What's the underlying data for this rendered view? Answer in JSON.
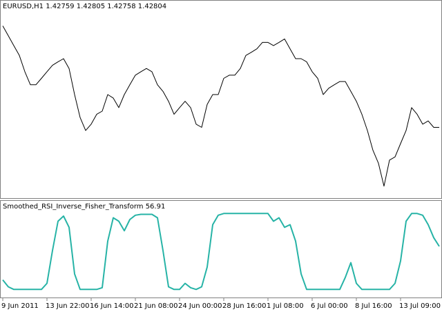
{
  "chart_data": [
    {
      "type": "line",
      "title": "EURUSD,H1  1.42759 1.42805 1.42758 1.42804",
      "color": "#000000",
      "ylim": [
        1.4022,
        1.4722
      ],
      "values": [
        1.4661,
        1.4624,
        1.4587,
        1.455,
        1.4489,
        1.444,
        1.444,
        1.4464,
        1.4489,
        1.4513,
        1.4526,
        1.4538,
        1.4501,
        1.4403,
        1.4317,
        1.4268,
        1.4292,
        1.4329,
        1.4341,
        1.4403,
        1.439,
        1.4354,
        1.4403,
        1.444,
        1.4476,
        1.4489,
        1.4501,
        1.4489,
        1.444,
        1.4415,
        1.4378,
        1.4329,
        1.4354,
        1.4378,
        1.4354,
        1.4292,
        1.428,
        1.4366,
        1.4403,
        1.4403,
        1.4464,
        1.4476,
        1.4476,
        1.4501,
        1.455,
        1.4562,
        1.4575,
        1.4599,
        1.4599,
        1.4587,
        1.4599,
        1.4612,
        1.4575,
        1.4538,
        1.4538,
        1.4526,
        1.4489,
        1.4464,
        1.4403,
        1.4427,
        1.444,
        1.4452,
        1.4452,
        1.4415,
        1.4378,
        1.4329,
        1.4268,
        1.4194,
        1.4145,
        1.4059,
        1.4157,
        1.4169,
        1.4219,
        1.4268,
        1.4354,
        1.4329,
        1.4292,
        1.4304,
        1.428,
        1.428
      ]
    },
    {
      "type": "line",
      "title": "Smoothed_RSI_Inverse_Fisher_Transform 56.91",
      "color": "#26b3a6",
      "ylim": [
        0,
        100
      ],
      "categories": [
        "9 Jun 2011",
        null,
        null,
        null,
        null,
        null,
        null,
        null,
        "13 Jun 22:00",
        null,
        null,
        null,
        null,
        null,
        null,
        null,
        "16 Jun 14:00",
        null,
        null,
        null,
        null,
        null,
        null,
        null,
        "21 Jun 08:00",
        null,
        null,
        null,
        null,
        null,
        null,
        null,
        "24 Jun 00:00",
        null,
        null,
        null,
        null,
        null,
        null,
        null,
        "28 Jun 16:00",
        null,
        null,
        null,
        null,
        null,
        null,
        null,
        "1 Jul 08:00",
        null,
        null,
        null,
        null,
        null,
        null,
        null,
        "6 Jul 00:00",
        null,
        null,
        null,
        null,
        null,
        null,
        null,
        "8 Jul 16:00",
        null,
        null,
        null,
        null,
        null,
        null,
        null,
        "13 Jul 09:00",
        null,
        null,
        null,
        null,
        null,
        null,
        null
      ],
      "values": [
        18,
        10,
        7,
        7,
        7,
        7,
        7,
        7,
        14,
        52,
        86,
        92,
        79,
        25,
        7,
        7,
        7,
        7,
        9,
        63,
        90,
        86,
        75,
        88,
        93,
        94,
        94,
        94,
        90,
        52,
        10,
        7,
        7,
        14,
        9,
        7,
        10,
        33,
        82,
        93,
        95,
        95,
        95,
        95,
        95,
        95,
        95,
        95,
        95,
        86,
        90,
        79,
        82,
        63,
        25,
        7,
        7,
        7,
        7,
        7,
        7,
        7,
        21,
        38,
        14,
        7,
        7,
        7,
        7,
        7,
        7,
        14,
        40,
        86,
        95,
        95,
        93,
        82,
        67,
        56.91
      ]
    }
  ]
}
